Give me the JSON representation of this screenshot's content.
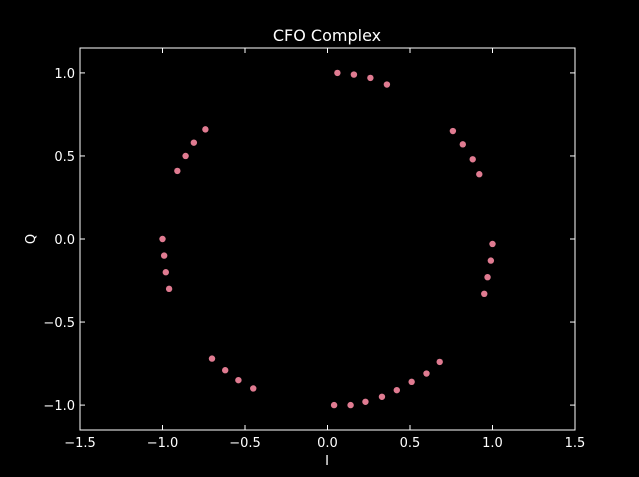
{
  "chart_data": {
    "type": "scatter",
    "title": "CFO Complex",
    "xlabel": "I",
    "ylabel": "Q",
    "xlim": [
      -1.5,
      1.5
    ],
    "ylim": [
      -1.15,
      1.15
    ],
    "xticks": [
      -1.5,
      -1.0,
      -0.5,
      0.0,
      0.5,
      1.0,
      1.5
    ],
    "xtick_labels": [
      "−1.5",
      "−1.0",
      "−0.5",
      "0.0",
      "0.5",
      "1.0",
      "1.5"
    ],
    "yticks": [
      -1.0,
      -0.5,
      0.0,
      0.5,
      1.0
    ],
    "ytick_labels": [
      "−1.0",
      "−0.5",
      "0.0",
      "0.5",
      "1.0"
    ],
    "grid": false,
    "colors": {
      "background": "#000000",
      "axes": "#ffffff",
      "text": "#ffffff",
      "marker": "#e07b91"
    },
    "points": [
      {
        "x": 0.06,
        "y": 1.0
      },
      {
        "x": 0.16,
        "y": 0.99
      },
      {
        "x": 0.26,
        "y": 0.97
      },
      {
        "x": 0.36,
        "y": 0.93
      },
      {
        "x": 0.76,
        "y": 0.65
      },
      {
        "x": 0.82,
        "y": 0.57
      },
      {
        "x": 0.88,
        "y": 0.48
      },
      {
        "x": 0.92,
        "y": 0.39
      },
      {
        "x": 1.0,
        "y": -0.03
      },
      {
        "x": 0.99,
        "y": -0.13
      },
      {
        "x": 0.97,
        "y": -0.23
      },
      {
        "x": 0.95,
        "y": -0.33
      },
      {
        "x": 0.68,
        "y": -0.74
      },
      {
        "x": 0.6,
        "y": -0.81
      },
      {
        "x": 0.51,
        "y": -0.86
      },
      {
        "x": 0.42,
        "y": -0.91
      },
      {
        "x": 0.33,
        "y": -0.95
      },
      {
        "x": 0.23,
        "y": -0.98
      },
      {
        "x": 0.14,
        "y": -1.0
      },
      {
        "x": 0.04,
        "y": -1.0
      },
      {
        "x": -0.45,
        "y": -0.9
      },
      {
        "x": -0.54,
        "y": -0.85
      },
      {
        "x": -0.62,
        "y": -0.79
      },
      {
        "x": -0.7,
        "y": -0.72
      },
      {
        "x": -0.96,
        "y": -0.3
      },
      {
        "x": -0.98,
        "y": -0.2
      },
      {
        "x": -0.99,
        "y": -0.1
      },
      {
        "x": -1.0,
        "y": 0.0
      },
      {
        "x": -0.91,
        "y": 0.41
      },
      {
        "x": -0.86,
        "y": 0.5
      },
      {
        "x": -0.81,
        "y": 0.58
      },
      {
        "x": -0.74,
        "y": 0.66
      }
    ]
  }
}
